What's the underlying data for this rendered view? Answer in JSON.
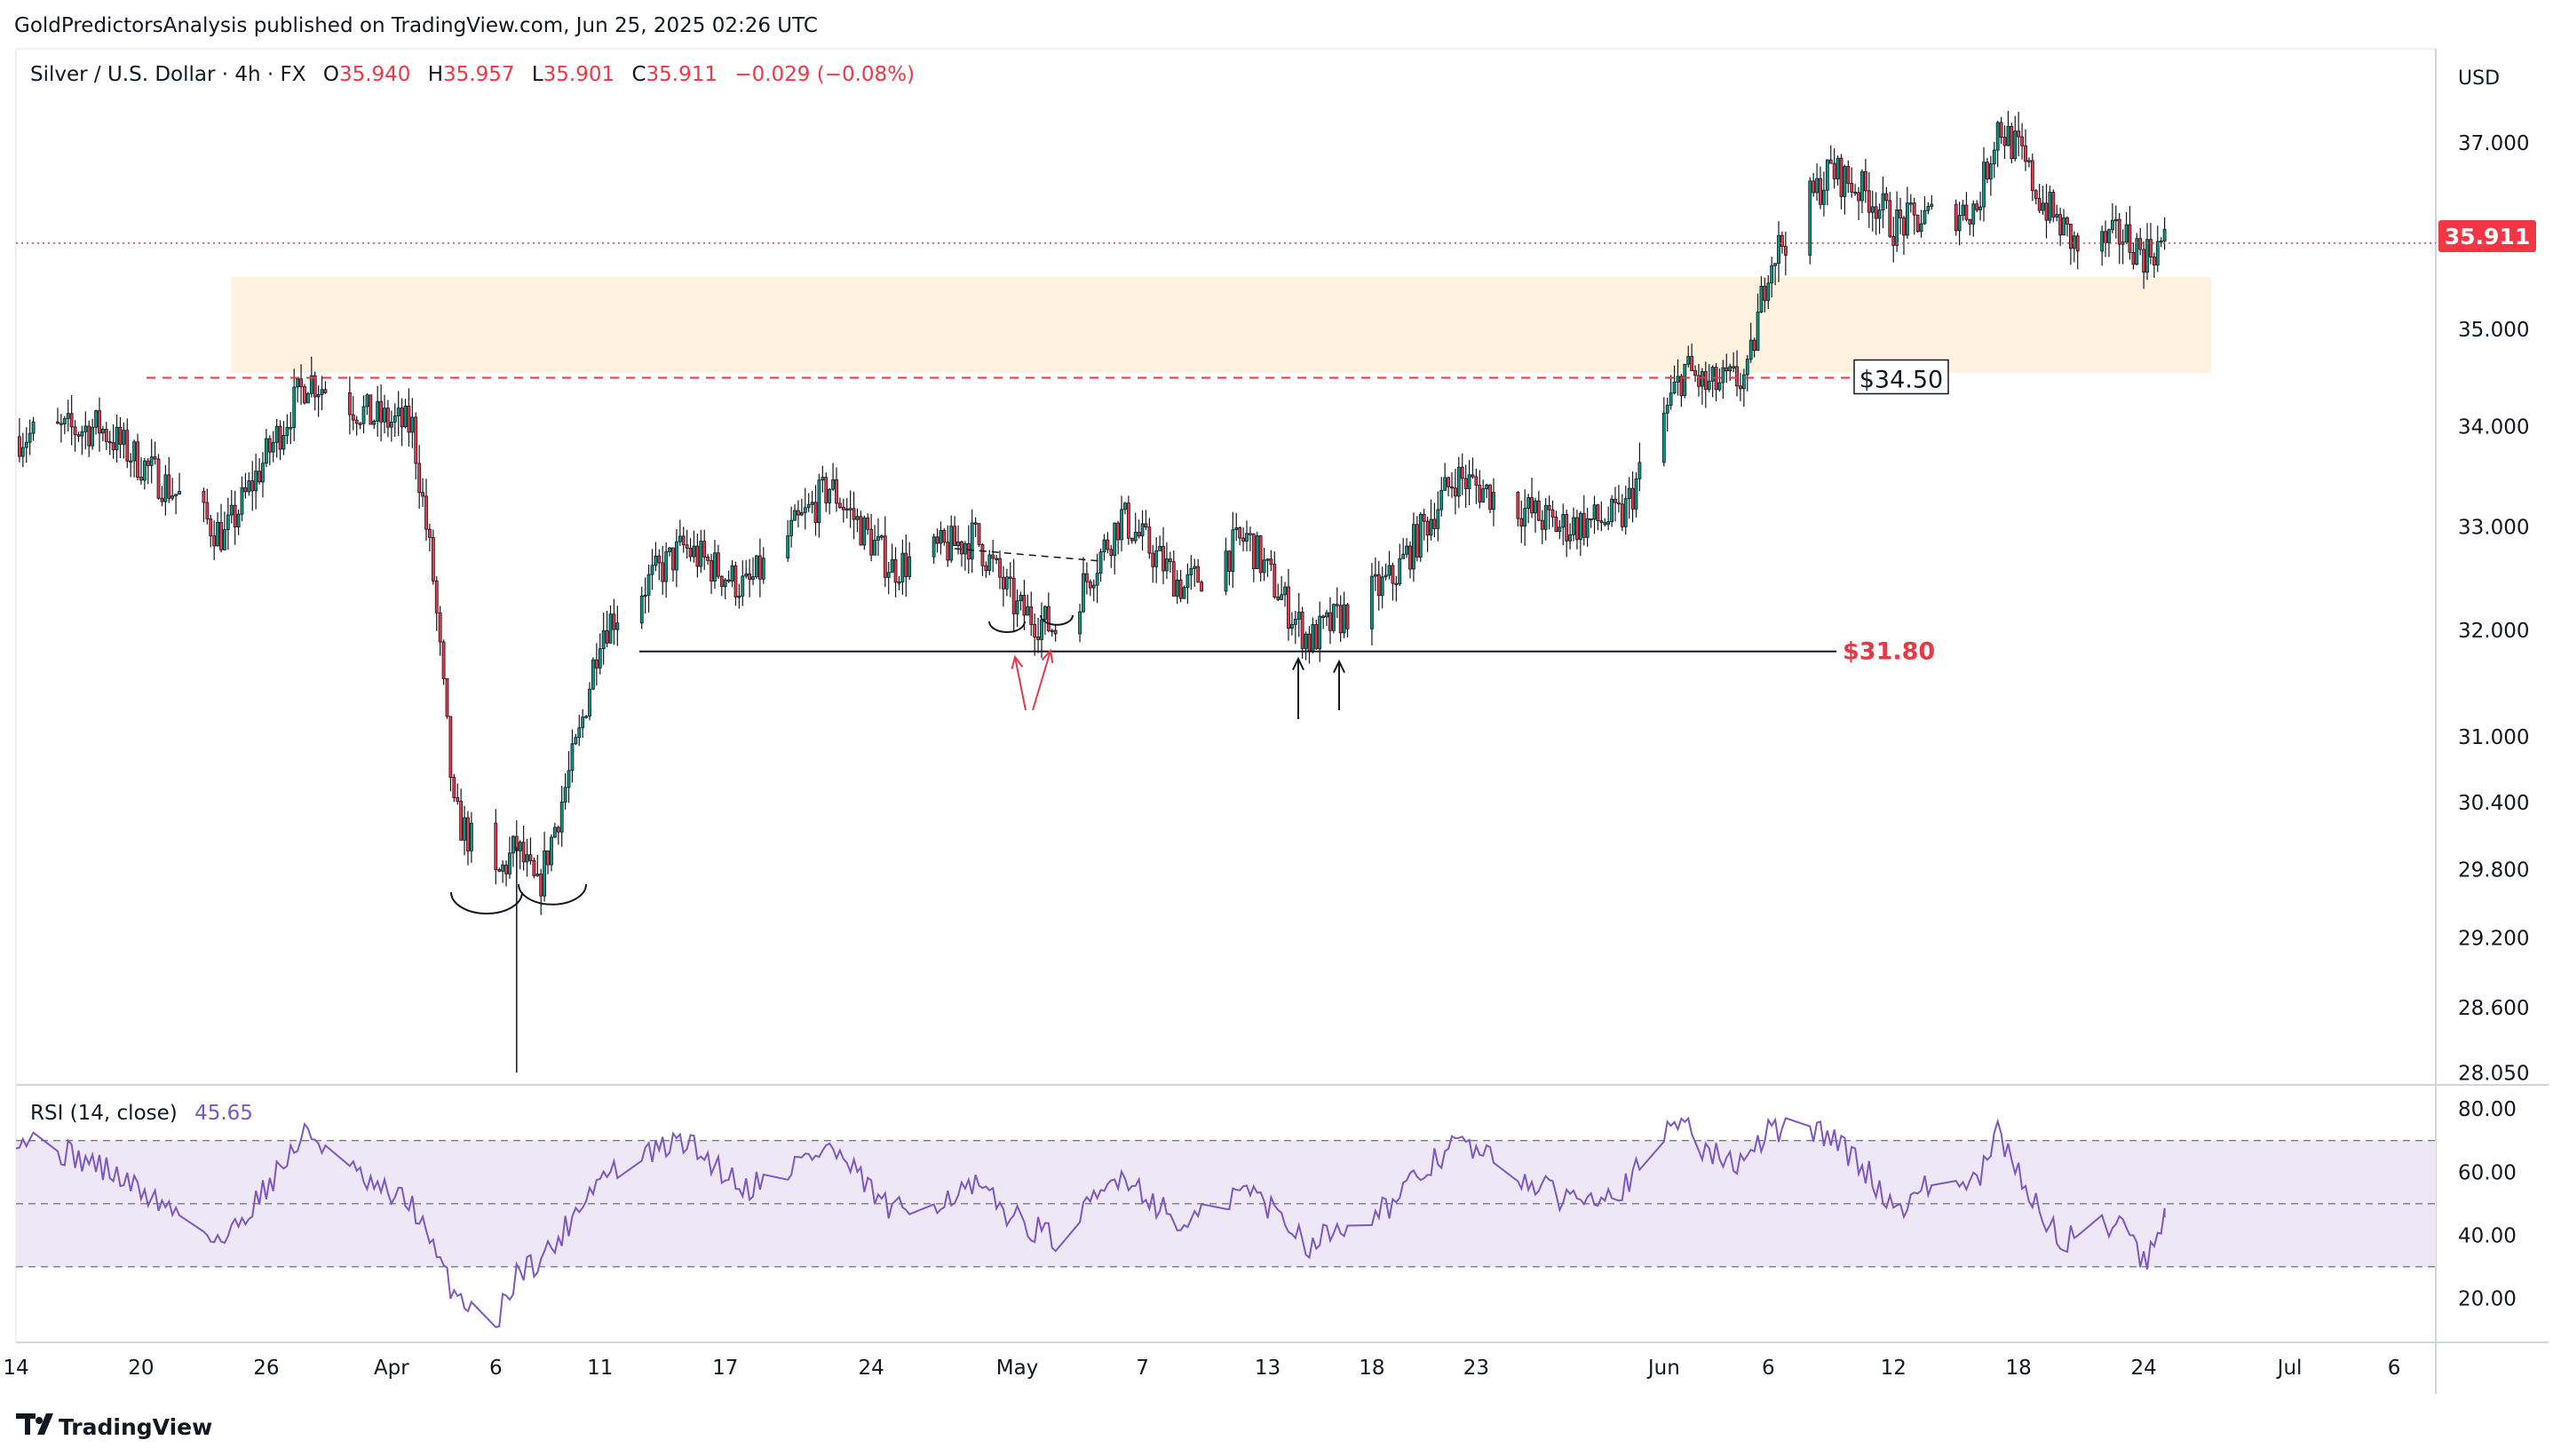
{
  "header": {
    "published": "GoldPredictorsAnalysis published on TradingView.com, Jun 25, 2025 02:26 UTC",
    "symbol": "Silver / U.S. Dollar · 4h · FX",
    "o_label": "O",
    "o": "35.940",
    "h_label": "H",
    "h": "35.957",
    "l_label": "L",
    "l": "35.901",
    "c_label": "C",
    "c": "35.911",
    "change": "−0.029 (−0.08%)"
  },
  "currency": "USD",
  "last_price": "35.911",
  "footer": {
    "brand": "TradingView"
  },
  "colors": {
    "up": "#089981",
    "down": "#f23645",
    "annotation_red": "#e53945",
    "zone_fill": "#fff3e0",
    "rsi_line": "#7e57c2",
    "rsi_band": "#ede7f6",
    "price_label_bg": "#f23645"
  },
  "chart_data": [
    {
      "type": "candlestick",
      "title": "",
      "interval": "4h",
      "y_scale": "log",
      "ylim": [
        28.0,
        37.9
      ],
      "y_ticks": [
        "37.000",
        "35.000",
        "34.000",
        "33.000",
        "32.000",
        "31.000",
        "30.400",
        "29.800",
        "29.200",
        "28.600",
        "28.050"
      ],
      "y_tick_values": [
        37.0,
        35.0,
        34.0,
        33.0,
        32.0,
        31.0,
        30.4,
        29.8,
        29.2,
        28.6,
        28.05
      ],
      "x_ticks": [
        "14",
        "20",
        "26",
        "Apr",
        "6",
        "11",
        "17",
        "24",
        "May",
        "7",
        "13",
        "18",
        "23",
        "Jun",
        "6",
        "12",
        "18",
        "24",
        "Jul",
        "6"
      ],
      "x_tick_dates": [
        "2025-03-14",
        "2025-03-20",
        "2025-03-26",
        "2025-04-01",
        "2025-04-06",
        "2025-04-11",
        "2025-04-17",
        "2025-04-24",
        "2025-05-01",
        "2025-05-07",
        "2025-05-13",
        "2025-05-18",
        "2025-05-23",
        "2025-06-01",
        "2025-06-06",
        "2025-06-12",
        "2025-06-18",
        "2025-06-24",
        "2025-07-01",
        "2025-07-06"
      ],
      "x_range": [
        "2025-03-14",
        "2025-07-08"
      ],
      "key_points": {
        "dates": [
          "2025-03-14",
          "2025-03-18",
          "2025-03-24",
          "2025-03-28",
          "2025-03-31",
          "2025-04-02",
          "2025-04-03",
          "2025-04-04",
          "2025-04-06",
          "2025-04-07",
          "2025-04-08",
          "2025-04-09",
          "2025-04-10",
          "2025-04-11",
          "2025-04-12",
          "2025-04-15",
          "2025-04-18",
          "2025-04-22",
          "2025-04-25",
          "2025-04-29",
          "2025-05-01",
          "2025-05-03",
          "2025-05-06",
          "2025-05-09",
          "2025-05-12",
          "2025-05-14",
          "2025-05-15",
          "2025-05-17",
          "2025-05-19",
          "2025-05-22",
          "2025-05-27",
          "2025-05-30",
          "2025-06-02",
          "2025-06-03",
          "2025-06-05",
          "2025-06-06",
          "2025-06-09",
          "2025-06-11",
          "2025-06-12",
          "2025-06-14",
          "2025-06-16",
          "2025-06-17",
          "2025-06-18",
          "2025-06-19",
          "2025-06-20",
          "2025-06-21",
          "2025-06-23",
          "2025-06-24",
          "2025-06-25"
        ],
        "closes": [
          33.9,
          34.0,
          32.9,
          34.5,
          34.1,
          34.0,
          32.5,
          30.3,
          29.7,
          30.0,
          29.6,
          30.3,
          31.0,
          32.0,
          32.2,
          32.8,
          32.4,
          33.4,
          32.6,
          32.9,
          32.2,
          32.0,
          33.1,
          32.4,
          32.9,
          32.2,
          31.9,
          32.2,
          32.5,
          33.5,
          33.0,
          33.1,
          34.6,
          34.4,
          34.5,
          35.7,
          36.7,
          36.4,
          36.1,
          36.2,
          36.3,
          37.2,
          36.9,
          36.4,
          36.1,
          35.8,
          36.0,
          35.8,
          35.91
        ]
      },
      "resistance_zone": {
        "from": 34.55,
        "to": 35.55
      },
      "levels": [
        {
          "label": "$34.50",
          "value": 34.5
        },
        {
          "label": "$31.80",
          "value": 31.8
        },
        {
          "value": 35.911
        }
      ]
    },
    {
      "type": "line",
      "title": "RSI (14, close)",
      "value_label": "45.65",
      "ylim": [
        8,
        84
      ],
      "y_ticks": [
        "80.00",
        "60.00",
        "40.00",
        "20.00"
      ],
      "y_tick_values": [
        80,
        60,
        40,
        20
      ],
      "band": [
        30,
        70
      ],
      "midline": 50,
      "key_points": {
        "dates": [
          "2025-03-14",
          "2025-03-18",
          "2025-03-24",
          "2025-03-28",
          "2025-03-31",
          "2025-04-02",
          "2025-04-03",
          "2025-04-04",
          "2025-04-06",
          "2025-04-07",
          "2025-04-08",
          "2025-04-09",
          "2025-04-10",
          "2025-04-11",
          "2025-04-12",
          "2025-04-15",
          "2025-04-18",
          "2025-04-22",
          "2025-04-25",
          "2025-04-29",
          "2025-05-01",
          "2025-05-03",
          "2025-05-06",
          "2025-05-09",
          "2025-05-12",
          "2025-05-14",
          "2025-05-15",
          "2025-05-17",
          "2025-05-19",
          "2025-05-22",
          "2025-05-27",
          "2025-05-30",
          "2025-06-02",
          "2025-06-03",
          "2025-06-05",
          "2025-06-06",
          "2025-06-09",
          "2025-06-11",
          "2025-06-12",
          "2025-06-14",
          "2025-06-16",
          "2025-06-17",
          "2025-06-18",
          "2025-06-19",
          "2025-06-20",
          "2025-06-21",
          "2025-06-23",
          "2025-06-24",
          "2025-06-25"
        ],
        "values": [
          72,
          62,
          38,
          73,
          55,
          50,
          35,
          22,
          12,
          28,
          32,
          38,
          50,
          58,
          62,
          70,
          55,
          68,
          47,
          55,
          45,
          38,
          60,
          42,
          55,
          44,
          37,
          45,
          50,
          70,
          52,
          55,
          78,
          66,
          62,
          74,
          72,
          58,
          48,
          57,
          56,
          72,
          60,
          48,
          38,
          40,
          46,
          31,
          45.65
        ]
      }
    }
  ]
}
